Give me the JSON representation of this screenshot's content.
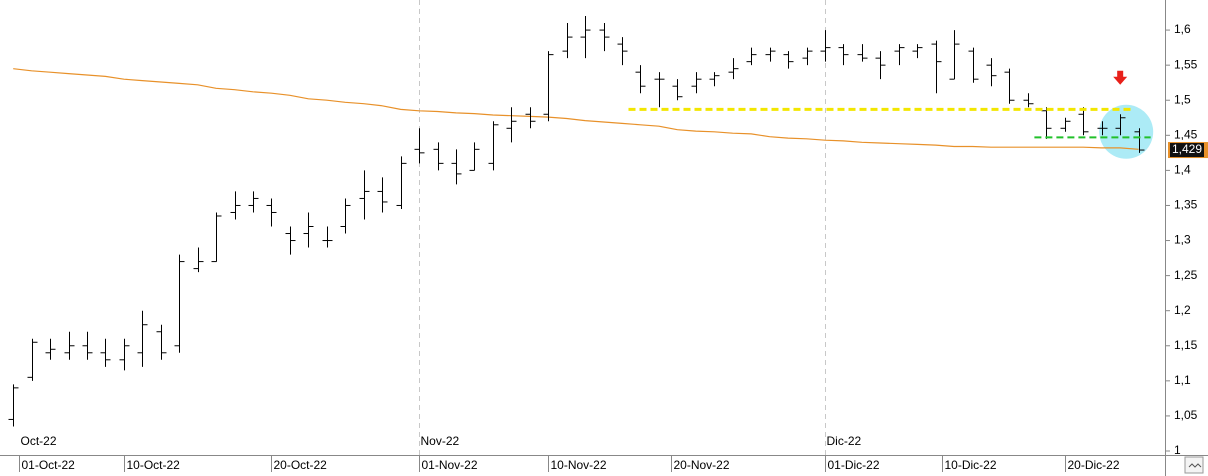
{
  "chart_data": {
    "type": "ohlc",
    "x": [
      "2022-09-30",
      "2022-10-03",
      "2022-10-04",
      "2022-10-05",
      "2022-10-06",
      "2022-10-07",
      "2022-10-10",
      "2022-10-11",
      "2022-10-12",
      "2022-10-13",
      "2022-10-14",
      "2022-10-17",
      "2022-10-18",
      "2022-10-19",
      "2022-10-20",
      "2022-10-21",
      "2022-10-24",
      "2022-10-25",
      "2022-10-26",
      "2022-10-27",
      "2022-10-28",
      "2022-10-31",
      "2022-11-01",
      "2022-11-02",
      "2022-11-03",
      "2022-11-04",
      "2022-11-07",
      "2022-11-08",
      "2022-11-09",
      "2022-11-10",
      "2022-11-11",
      "2022-11-14",
      "2022-11-15",
      "2022-11-16",
      "2022-11-17",
      "2022-11-18",
      "2022-11-21",
      "2022-11-22",
      "2022-11-23",
      "2022-11-24",
      "2022-11-25",
      "2022-11-28",
      "2022-11-29",
      "2022-11-30",
      "2022-12-01",
      "2022-12-02",
      "2022-12-05",
      "2022-12-06",
      "2022-12-07",
      "2022-12-08",
      "2022-12-09",
      "2022-12-12",
      "2022-12-13",
      "2022-12-14",
      "2022-12-15",
      "2022-12-16",
      "2022-12-19",
      "2022-12-20",
      "2022-12-21",
      "2022-12-22",
      "2022-12-23",
      "2022-12-27"
    ],
    "open": [
      1.045,
      1.105,
      1.14,
      1.14,
      1.15,
      1.14,
      1.13,
      1.14,
      1.17,
      1.15,
      1.26,
      1.27,
      1.34,
      1.35,
      1.35,
      1.31,
      1.31,
      1.3,
      1.32,
      1.36,
      1.37,
      1.35,
      1.43,
      1.43,
      1.41,
      1.4,
      1.41,
      1.46,
      1.48,
      1.48,
      1.57,
      1.59,
      1.6,
      1.58,
      1.54,
      1.53,
      1.52,
      1.52,
      1.53,
      1.54,
      1.555,
      1.565,
      1.565,
      1.56,
      1.57,
      1.575,
      1.565,
      1.56,
      1.57,
      1.57,
      1.58,
      1.53,
      1.57,
      1.55,
      1.54,
      1.5,
      1.485,
      1.46,
      1.48,
      1.46,
      1.46,
      1.455
    ],
    "high": [
      1.095,
      1.16,
      1.16,
      1.17,
      1.17,
      1.16,
      1.16,
      1.2,
      1.18,
      1.28,
      1.29,
      1.34,
      1.37,
      1.37,
      1.36,
      1.32,
      1.34,
      1.32,
      1.36,
      1.4,
      1.39,
      1.42,
      1.46,
      1.44,
      1.43,
      1.44,
      1.47,
      1.49,
      1.49,
      1.57,
      1.61,
      1.62,
      1.61,
      1.59,
      1.55,
      1.54,
      1.53,
      1.54,
      1.54,
      1.56,
      1.575,
      1.575,
      1.57,
      1.575,
      1.6,
      1.58,
      1.58,
      1.57,
      1.58,
      1.58,
      1.585,
      1.6,
      1.575,
      1.56,
      1.545,
      1.51,
      1.49,
      1.475,
      1.49,
      1.47,
      1.48,
      1.46
    ],
    "low": [
      1.035,
      1.1,
      1.13,
      1.13,
      1.13,
      1.12,
      1.115,
      1.12,
      1.13,
      1.14,
      1.255,
      1.27,
      1.33,
      1.34,
      1.32,
      1.28,
      1.29,
      1.29,
      1.31,
      1.33,
      1.34,
      1.345,
      1.41,
      1.4,
      1.38,
      1.4,
      1.4,
      1.44,
      1.46,
      1.47,
      1.56,
      1.56,
      1.57,
      1.55,
      1.51,
      1.49,
      1.5,
      1.51,
      1.52,
      1.53,
      1.55,
      1.555,
      1.545,
      1.55,
      1.555,
      1.55,
      1.555,
      1.53,
      1.55,
      1.56,
      1.51,
      1.53,
      1.525,
      1.52,
      1.495,
      1.49,
      1.445,
      1.455,
      1.45,
      1.45,
      1.45,
      1.425
    ],
    "close": [
      1.09,
      1.155,
      1.145,
      1.15,
      1.14,
      1.13,
      1.15,
      1.18,
      1.14,
      1.27,
      1.27,
      1.335,
      1.35,
      1.36,
      1.34,
      1.3,
      1.32,
      1.3,
      1.35,
      1.37,
      1.355,
      1.41,
      1.425,
      1.41,
      1.395,
      1.43,
      1.465,
      1.47,
      1.47,
      1.565,
      1.59,
      1.6,
      1.59,
      1.57,
      1.52,
      1.53,
      1.505,
      1.53,
      1.535,
      1.545,
      1.565,
      1.57,
      1.555,
      1.57,
      1.575,
      1.565,
      1.56,
      1.55,
      1.575,
      1.575,
      1.555,
      1.58,
      1.53,
      1.535,
      1.5,
      1.495,
      1.46,
      1.47,
      1.455,
      1.46,
      1.475,
      1.429
    ],
    "bar_color": "#000000",
    "ma_values": [
      1.545,
      1.542,
      1.54,
      1.538,
      1.536,
      1.534,
      1.53,
      1.528,
      1.526,
      1.524,
      1.522,
      1.517,
      1.515,
      1.512,
      1.51,
      1.507,
      1.502,
      1.5,
      1.497,
      1.495,
      1.492,
      1.487,
      1.485,
      1.484,
      1.482,
      1.481,
      1.479,
      1.478,
      1.477,
      1.476,
      1.474,
      1.471,
      1.469,
      1.467,
      1.465,
      1.463,
      1.458,
      1.456,
      1.455,
      1.453,
      1.452,
      1.448,
      1.446,
      1.445,
      1.443,
      1.442,
      1.44,
      1.439,
      1.438,
      1.437,
      1.436,
      1.434,
      1.434,
      1.433,
      1.433,
      1.433,
      1.433,
      1.433,
      1.433,
      1.432,
      1.432,
      1.43
    ],
    "ma_color": "#e8912a",
    "xlim": [
      "2022-09-29",
      "2022-12-29"
    ],
    "ylim": [
      1.0,
      1.65
    ],
    "yticks": [
      1,
      {
        "value": 1.05,
        "label": "1,05"
      },
      {
        "value": 1.1,
        "label": "1,1"
      },
      {
        "value": 1.15,
        "label": "1,15"
      },
      {
        "value": 1.2,
        "label": "1,2"
      },
      {
        "value": 1.25,
        "label": "1,25"
      },
      {
        "value": 1.3,
        "label": "1,3"
      },
      {
        "value": 1.35,
        "label": "1,35"
      },
      {
        "value": 1.4,
        "label": "1,4"
      },
      {
        "value": 1.45,
        "label": "1,45"
      },
      {
        "value": 1.5,
        "label": "1,5"
      },
      {
        "value": 1.55,
        "label": "1,55"
      },
      {
        "value": 1.6,
        "label": "1,6"
      }
    ],
    "xticks": [
      {
        "value": "2022-10-01",
        "label": "01-Oct-22"
      },
      {
        "value": "2022-10-10",
        "label": "10-Oct-22"
      },
      {
        "value": "2022-10-20",
        "label": "20-Oct-22"
      },
      {
        "value": "2022-11-01",
        "label": "01-Nov-22"
      },
      {
        "value": "2022-11-10",
        "label": "10-Nov-22"
      },
      {
        "value": "2022-11-20",
        "label": "20-Nov-22"
      },
      {
        "value": "2022-12-01",
        "label": "01-Dic-22"
      },
      {
        "value": "2022-12-10",
        "label": "10-Dic-22"
      },
      {
        "value": "2022-12-20",
        "label": "20-Dic-22"
      }
    ],
    "month_labels": [
      {
        "value": "2022-10-01",
        "label": "Oct-22"
      },
      {
        "value": "2022-11-01",
        "label": "Nov-22"
      },
      {
        "value": "2022-12-01",
        "label": "Dic-22"
      }
    ],
    "grid": false,
    "last_price": {
      "value": 1.429,
      "label": "1,429"
    },
    "levels": [
      {
        "value": 1.487,
        "from": "2022-11-17",
        "to": "2022-12-23",
        "color": "#f2e600"
      },
      {
        "value": 1.447,
        "from": "2022-12-19",
        "to": "2022-12-27",
        "color": "#22c02a"
      }
    ],
    "highlight": {
      "x": "2022-12-23",
      "value": 1.455,
      "color": "#9ee8f5"
    },
    "arrow": {
      "x": "2022-12-23",
      "value": 1.525,
      "color": "#e8201a"
    }
  }
}
